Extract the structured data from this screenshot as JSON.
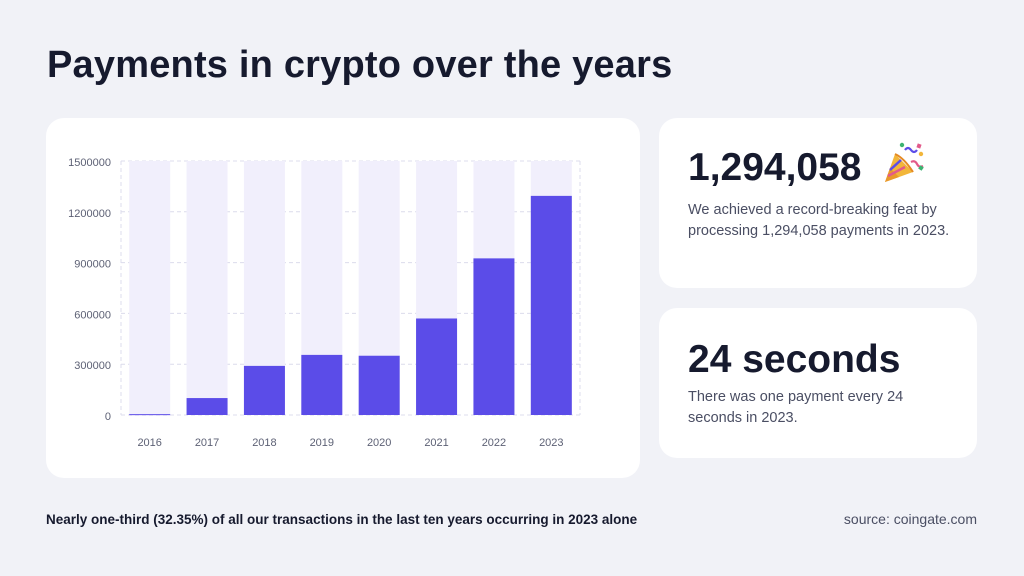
{
  "title": "Payments in crypto over the years",
  "chart_data": {
    "type": "bar",
    "categories": [
      "2016",
      "2017",
      "2018",
      "2019",
      "2020",
      "2021",
      "2022",
      "2023"
    ],
    "values": [
      5000,
      100000,
      290000,
      355000,
      350000,
      570000,
      925000,
      1294058
    ],
    "ylim": [
      0,
      1500000
    ],
    "yticks": [
      0,
      300000,
      600000,
      900000,
      1200000,
      1500000
    ],
    "ytick_labels": [
      "0",
      "300000",
      "600000",
      "900000",
      "1200000",
      "1500000"
    ],
    "grid": true,
    "colors": {
      "bar": "#5b4ce8",
      "track": "#f1effc",
      "grid": "#dcdcec"
    }
  },
  "stats": [
    {
      "value": "1,294,058",
      "icon": "party-popper-icon",
      "description": "We achieved a record-breaking feat by processing 1,294,058 payments in 2023."
    },
    {
      "value": "24 seconds",
      "description": "There was one payment every 24 seconds in 2023."
    }
  ],
  "footnote": "Nearly one-third (32.35%) of all our transactions in the last ten years occurring in 2023 alone",
  "source": "source: coingate.com"
}
